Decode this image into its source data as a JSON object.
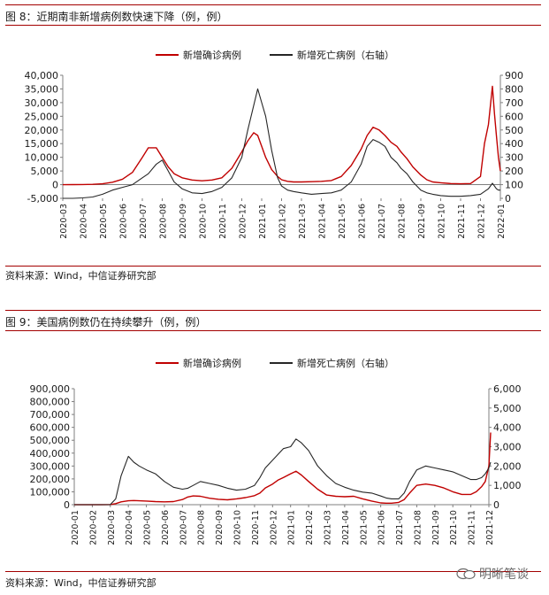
{
  "chart_data": [
    {
      "type": "line",
      "title": "图 8：近期南非新增病例数快速下降（例，例）",
      "source": "资料来源：Wind，中信证券研究部",
      "legend": [
        "新增确诊病例",
        "新增死亡病例（右轴）"
      ],
      "legend_position": "top-right",
      "colors": {
        "cases": "#c00000",
        "deaths": "#262626"
      },
      "ylim_left": [
        -5000,
        40000
      ],
      "ylim_right": [
        0,
        900
      ],
      "yticks_left": [
        "-5,000",
        "0",
        "5,000",
        "10,000",
        "15,000",
        "20,000",
        "25,000",
        "30,000",
        "35,000",
        "40,000"
      ],
      "yticks_right": [
        "0",
        "100",
        "200",
        "300",
        "400",
        "500",
        "600",
        "700",
        "800",
        "900"
      ],
      "x_ticks": [
        "2020-03",
        "2020-04",
        "2020-05",
        "2020-06",
        "2020-07",
        "2020-08",
        "2020-09",
        "2020-10",
        "2020-11",
        "2020-12",
        "2021-01",
        "2021-02",
        "2021-03",
        "2021-04",
        "2021-05",
        "2021-06",
        "2021-07",
        "2021-08",
        "2021-09",
        "2021-10",
        "2021-11",
        "2021-12",
        "2022-01"
      ],
      "x": [
        0,
        0.5,
        1,
        1.5,
        2,
        2.5,
        3,
        3.5,
        4,
        4.3,
        4.7,
        5,
        5.3,
        5.6,
        6,
        6.5,
        7,
        7.5,
        8,
        8.5,
        9,
        9.3,
        9.6,
        9.8,
        10,
        10.2,
        10.5,
        10.8,
        11,
        11.3,
        11.6,
        12,
        12.5,
        13,
        13.5,
        14,
        14.5,
        15,
        15.3,
        15.6,
        15.9,
        16.2,
        16.5,
        16.8,
        17,
        17.3,
        17.6,
        18,
        18.3,
        18.6,
        19,
        19.5,
        20,
        20.5,
        21,
        21.2,
        21.4,
        21.6,
        21.7,
        21.8,
        21.9,
        22
      ],
      "series": [
        {
          "name": "新增确诊病例",
          "axis": "left",
          "values": [
            0,
            10,
            50,
            100,
            300,
            900,
            2000,
            4500,
            10000,
            13500,
            13500,
            10000,
            6500,
            4000,
            2500,
            1700,
            1400,
            1700,
            2500,
            6000,
            12000,
            16000,
            19000,
            18000,
            14000,
            10000,
            5500,
            3000,
            1800,
            1200,
            1000,
            1000,
            1100,
            1200,
            1500,
            3000,
            7000,
            13000,
            18000,
            21000,
            20000,
            18000,
            15500,
            14000,
            12000,
            9500,
            6500,
            3500,
            1800,
            1000,
            700,
            400,
            300,
            400,
            3000,
            15000,
            22000,
            36000,
            26000,
            18000,
            10000,
            5000
          ]
        },
        {
          "name": "新增死亡病例（右轴）",
          "axis": "right",
          "values": [
            0,
            0,
            3,
            10,
            30,
            60,
            80,
            100,
            150,
            180,
            250,
            280,
            200,
            120,
            70,
            40,
            35,
            50,
            80,
            150,
            300,
            500,
            680,
            800,
            700,
            600,
            350,
            150,
            90,
            60,
            50,
            40,
            30,
            35,
            40,
            60,
            120,
            250,
            380,
            430,
            410,
            380,
            300,
            260,
            220,
            180,
            120,
            60,
            40,
            30,
            20,
            15,
            15,
            20,
            30,
            50,
            70,
            110,
            90,
            70,
            60,
            60
          ]
        }
      ]
    },
    {
      "type": "line",
      "title": "图 9：美国病例数仍在持续攀升（例，例）",
      "source": "资料来源：Wind，中信证券研究部",
      "legend": [
        "新增确诊病例",
        "新增死亡病例（右轴）"
      ],
      "legend_position": "top-right",
      "colors": {
        "cases": "#c00000",
        "deaths": "#262626"
      },
      "ylim_left": [
        0,
        900000
      ],
      "ylim_right": [
        0,
        6000
      ],
      "yticks_left": [
        "0",
        "100,000",
        "200,000",
        "300,000",
        "400,000",
        "500,000",
        "600,000",
        "700,000",
        "800,000",
        "900,000"
      ],
      "yticks_right": [
        "0",
        "1,000",
        "2,000",
        "3,000",
        "4,000",
        "5,000",
        "6,000"
      ],
      "x_ticks": [
        "2020-01",
        "2020-02",
        "2020-03",
        "2020-04",
        "2020-05",
        "2020-06",
        "2020-07",
        "2020-08",
        "2020-09",
        "2020-10",
        "2020-11",
        "2020-12",
        "2021-01",
        "2021-02",
        "2021-03",
        "2021-04",
        "2021-05",
        "2021-06",
        "2021-07",
        "2021-08",
        "2021-09",
        "2021-10",
        "2021-11",
        "2021-12"
      ],
      "x": [
        0,
        0.5,
        1,
        1.5,
        2,
        2.3,
        2.6,
        3,
        3.3,
        3.6,
        4,
        4.5,
        5,
        5.5,
        6,
        6.3,
        6.6,
        7,
        7.5,
        8,
        8.5,
        9,
        9.5,
        10,
        10.3,
        10.6,
        11,
        11.3,
        11.6,
        12,
        12.3,
        12.6,
        13,
        13.5,
        14,
        14.5,
        15,
        15.5,
        16,
        16.5,
        17,
        17.3,
        17.6,
        18,
        18.3,
        18.6,
        19,
        19.5,
        20,
        20.5,
        21,
        21.5,
        22,
        22.3,
        22.6,
        22.8,
        23,
        23.1
      ],
      "series": [
        {
          "name": "新增确诊病例",
          "axis": "left",
          "values": [
            0,
            0,
            0,
            0,
            500,
            8000,
            22000,
            30000,
            32000,
            30000,
            28000,
            24000,
            22000,
            24000,
            40000,
            60000,
            68000,
            65000,
            50000,
            42000,
            38000,
            45000,
            55000,
            70000,
            90000,
            130000,
            160000,
            190000,
            210000,
            240000,
            260000,
            230000,
            180000,
            120000,
            75000,
            65000,
            62000,
            65000,
            45000,
            28000,
            14000,
            12000,
            12000,
            18000,
            40000,
            90000,
            150000,
            160000,
            150000,
            130000,
            100000,
            80000,
            80000,
            100000,
            140000,
            180000,
            300000,
            560000
          ]
        },
        {
          "name": "新增死亡病例（右轴）",
          "axis": "right",
          "values": [
            0,
            0,
            0,
            0,
            5,
            300,
            1500,
            2500,
            2200,
            2000,
            1800,
            1600,
            1200,
            900,
            800,
            850,
            1000,
            1200,
            1100,
            1000,
            850,
            750,
            800,
            1000,
            1400,
            1900,
            2300,
            2600,
            2900,
            3000,
            3400,
            3200,
            2800,
            2000,
            1500,
            1100,
            900,
            750,
            650,
            600,
            450,
            350,
            300,
            300,
            600,
            1200,
            1800,
            2000,
            1900,
            1800,
            1700,
            1500,
            1300,
            1300,
            1400,
            1600,
            1900,
            2200
          ]
        }
      ]
    }
  ],
  "watermark": "明晰笔谈"
}
